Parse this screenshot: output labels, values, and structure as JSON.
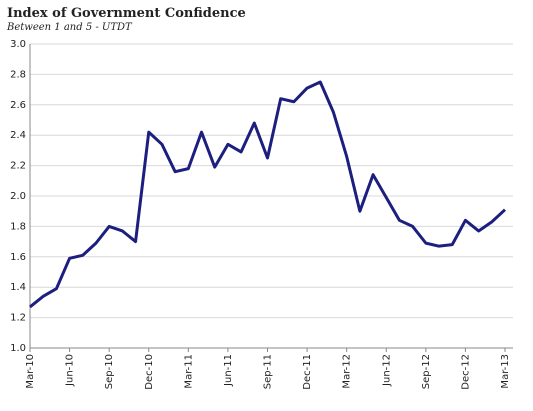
{
  "chart_data": {
    "type": "line",
    "title": "Index of Government Confidence",
    "subtitle": "Between 1 and 5 - UTDT",
    "categories": [
      "Mar-10",
      null,
      null,
      "Jun-10",
      null,
      null,
      "Sep-10",
      null,
      null,
      "Dec-10",
      null,
      null,
      "Mar-11",
      null,
      null,
      "Jun-11",
      null,
      null,
      "Sep-11",
      null,
      null,
      "Dec-11",
      null,
      null,
      "Mar-12",
      null,
      null,
      "Jun-12",
      null,
      null,
      "Sep-12",
      null,
      null,
      "Dec-12",
      null,
      null,
      "Mar-13"
    ],
    "series": [
      {
        "name": "Index of Government Confidence",
        "color": "#1c1f7e",
        "values": [
          1.27,
          1.34,
          1.39,
          1.59,
          1.61,
          1.69,
          1.8,
          1.77,
          1.7,
          2.42,
          2.34,
          2.16,
          2.18,
          2.42,
          2.19,
          2.34,
          2.29,
          2.48,
          2.25,
          2.64,
          2.62,
          2.71,
          2.75,
          2.55,
          2.26,
          1.9,
          2.14,
          1.99,
          1.84,
          1.8,
          1.69,
          1.67,
          1.68,
          1.84,
          1.77,
          1.83,
          1.91
        ]
      }
    ],
    "ylim": [
      1.0,
      3.0
    ],
    "yticks": [
      {
        "value": 1.0,
        "label": "1.0"
      },
      {
        "value": 1.2,
        "label": "1.2"
      },
      {
        "value": 1.4,
        "label": "1.4"
      },
      {
        "value": 1.6,
        "label": "1.6"
      },
      {
        "value": 1.8,
        "label": "1.8"
      },
      {
        "value": 2.0,
        "label": "2.0"
      },
      {
        "value": 2.2,
        "label": "2.2"
      },
      {
        "value": 2.4,
        "label": "2.4"
      },
      {
        "value": 2.6,
        "label": "2.6"
      },
      {
        "value": 2.8,
        "label": "2.8"
      },
      {
        "value": 3.0,
        "label": "3.0"
      }
    ],
    "grid": true
  }
}
